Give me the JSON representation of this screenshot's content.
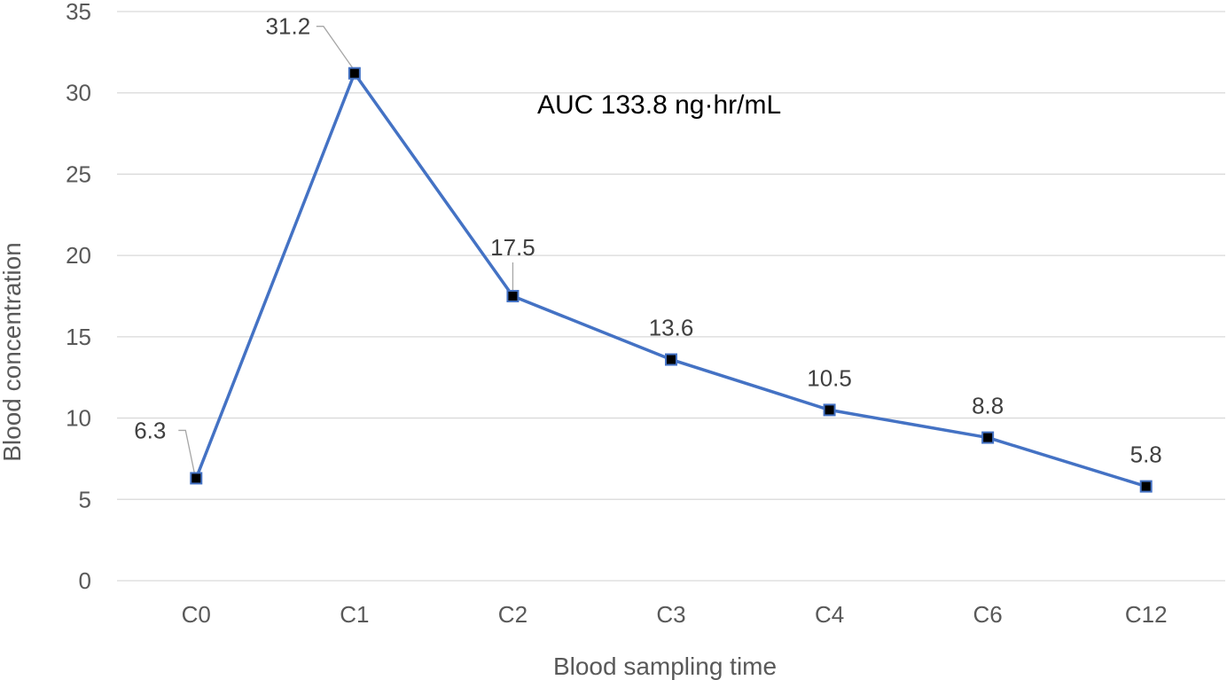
{
  "chart_data": {
    "type": "line",
    "categories": [
      "C0",
      "C1",
      "C2",
      "C3",
      "C4",
      "C6",
      "C12"
    ],
    "series": [
      {
        "values": [
          6.3,
          31.2,
          17.5,
          13.6,
          10.5,
          8.8,
          5.8
        ],
        "data_labels": [
          "6.3",
          "31.2",
          "17.5",
          "13.6",
          "10.5",
          "8.8",
          "5.8"
        ]
      }
    ],
    "xlabel": "Blood sampling time",
    "ylabel": "Blood concentration",
    "ylim": [
      0,
      35
    ],
    "yticks": [
      "0",
      "5",
      "10",
      "15",
      "20",
      "25",
      "30",
      "35"
    ],
    "grid": true,
    "legend": "none",
    "annotation": "AUC 133.8 ng·hr/mL",
    "colors": {
      "line": "#4472C4",
      "marker_fill": "#000000",
      "marker_stroke": "#4472C4",
      "grid": "#D9D9D9",
      "leader": "#A6A6A6"
    }
  }
}
